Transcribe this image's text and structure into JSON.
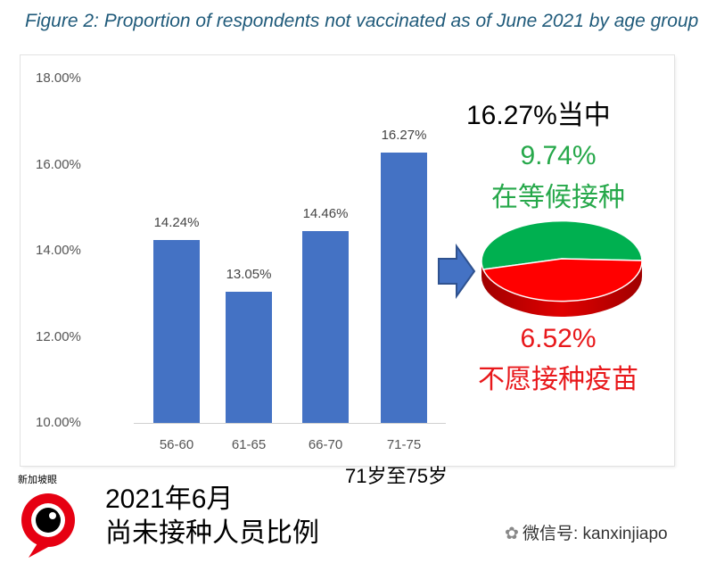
{
  "title": "Figure 2: Proportion of respondents not vaccinated as of June 2021 by age group",
  "chart_data": {
    "type": "bar",
    "categories": [
      "56-60",
      "61-65",
      "66-70",
      "71-75"
    ],
    "values": [
      14.24,
      13.05,
      14.46,
      16.27
    ],
    "data_labels": [
      "14.24%",
      "13.05%",
      "14.46%",
      "16.27%"
    ],
    "ylim": [
      10,
      18
    ],
    "yticks": [
      "10.00%",
      "12.00%",
      "14.00%",
      "16.00%",
      "18.00%"
    ],
    "grid": false,
    "bar_color": "#4472c4"
  },
  "pie": {
    "type": "pie",
    "heading": "16.27%当中",
    "slices": [
      {
        "value_label": "9.74%",
        "text": "在等候接种",
        "value": 9.74,
        "color": "#00b050"
      },
      {
        "value_label": "6.52%",
        "text": "不愿接种疫苗",
        "value": 6.52,
        "color": "#ff0000"
      }
    ]
  },
  "annotation": "71岁至75岁",
  "caption": [
    "2021年6月",
    "尚未接种人员比例"
  ],
  "logo_text": "新加坡眼",
  "watermark": "微信号: kanxinjiapo",
  "colors": {
    "accent_blue": "#4472c4",
    "green": "#00b050",
    "red": "#ff0000",
    "arrow": "#4472c4"
  }
}
